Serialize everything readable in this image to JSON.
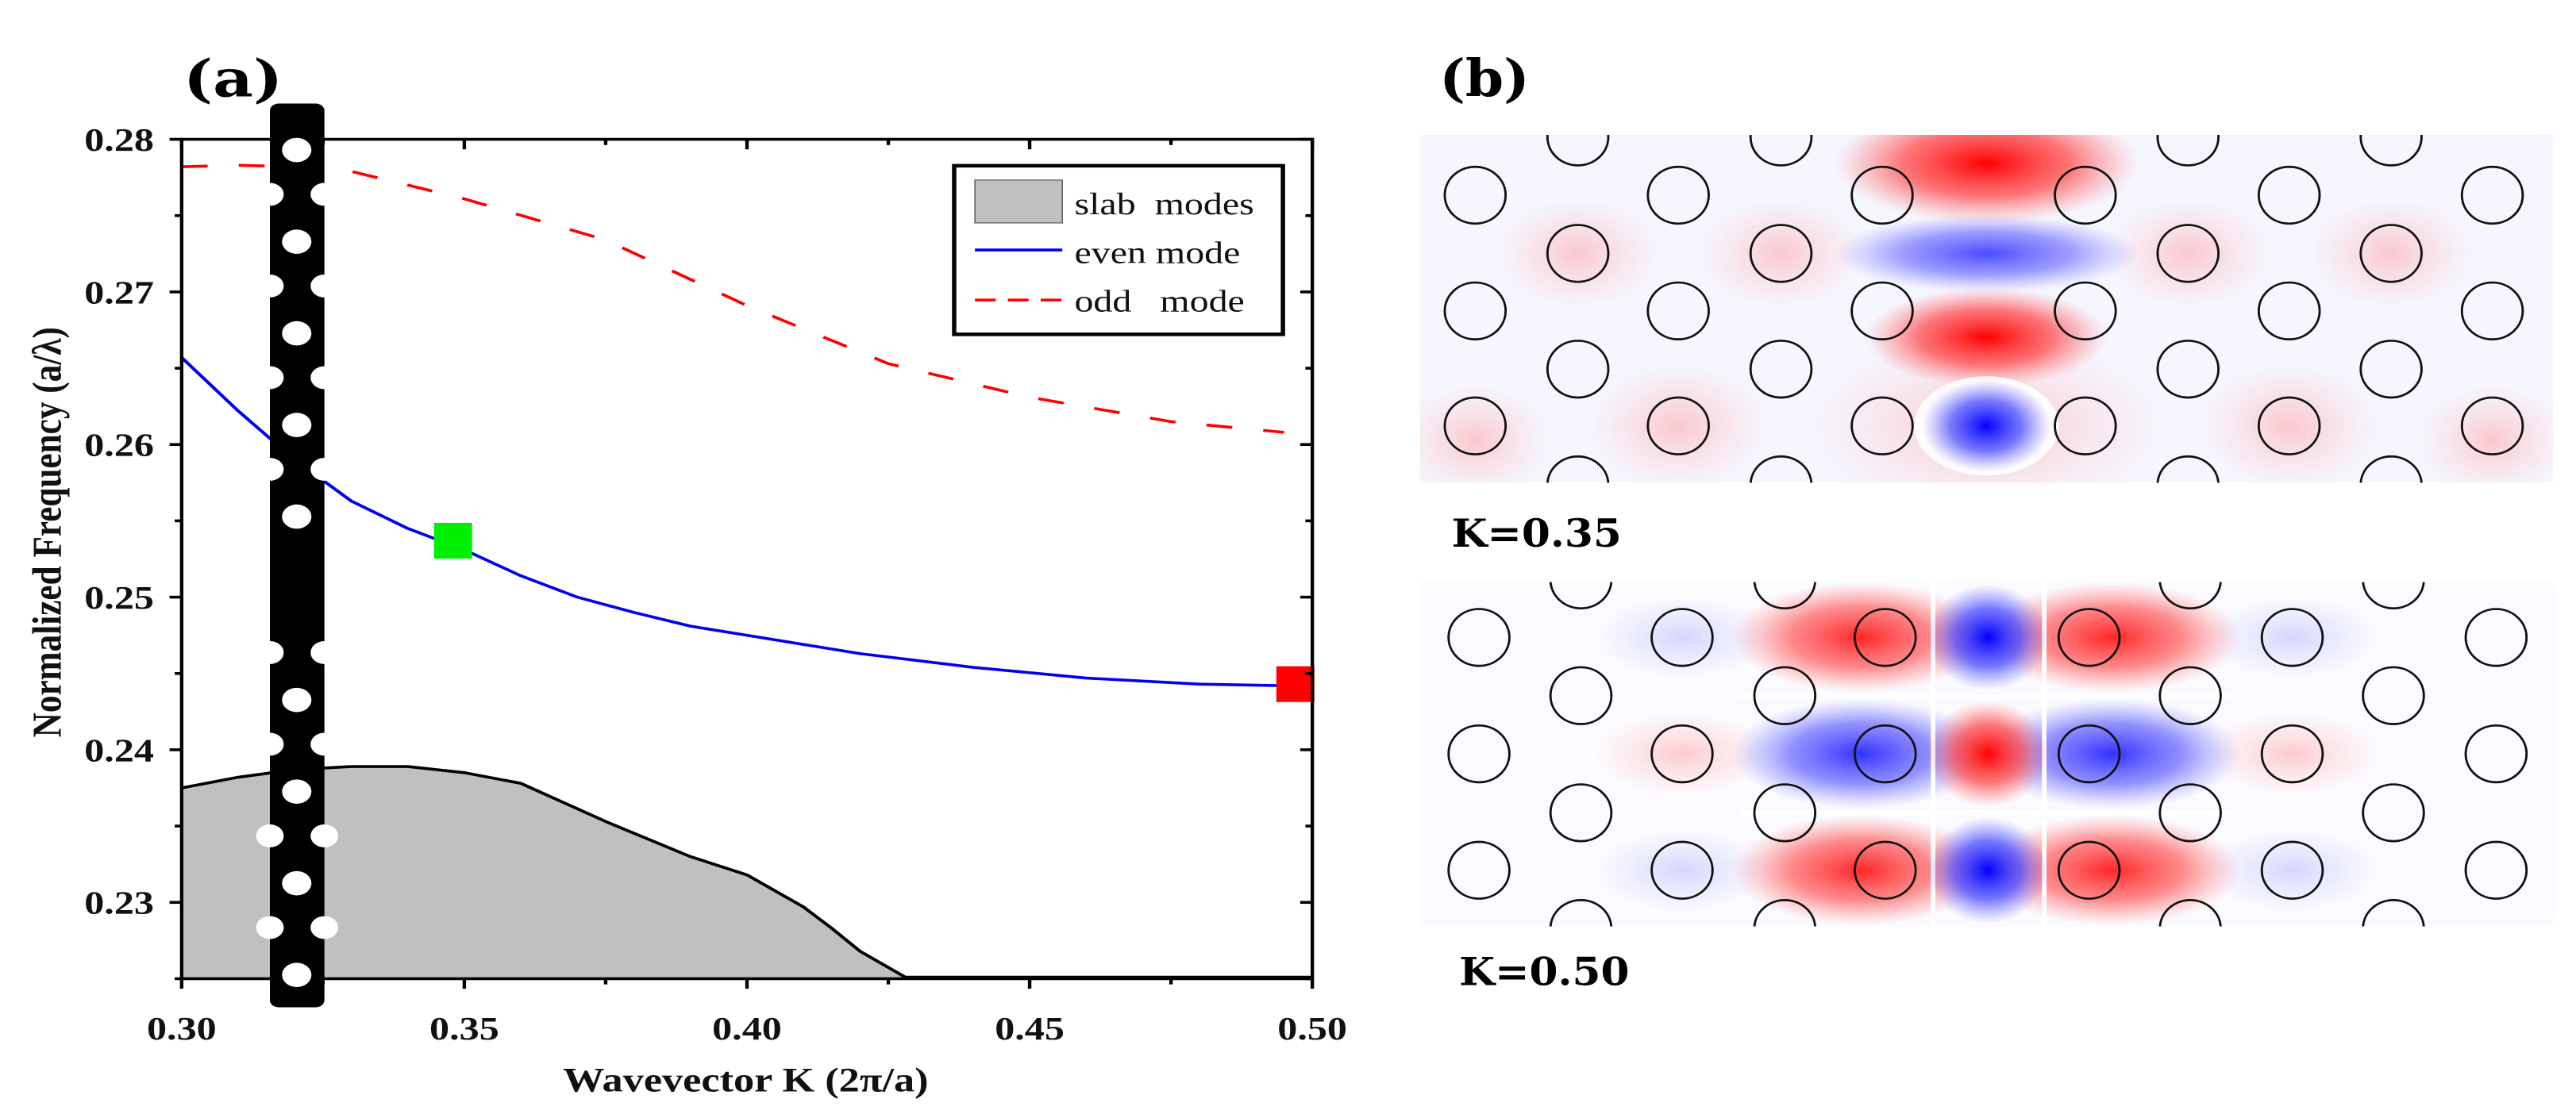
{
  "chart_data": {
    "type": "line",
    "panel_label": "(a)",
    "xlabel": "Wavevector K (2π/a)",
    "ylabel": "Normalized Frequency (a/λ)",
    "xlim": [
      0.3,
      0.5
    ],
    "ylim": [
      0.225,
      0.28
    ],
    "xticks": [
      "0.30",
      "0.35",
      "0.40",
      "0.45",
      "0.50"
    ],
    "yticks": [
      "0.23",
      "0.24",
      "0.25",
      "0.26",
      "0.27",
      "0.28"
    ],
    "grid": false,
    "legend_position": "top-right",
    "series": [
      {
        "name": "slab  modes",
        "style": "filled-area",
        "color": "#c0c0c0",
        "x": [
          0.3,
          0.31,
          0.32,
          0.33,
          0.34,
          0.35,
          0.36,
          0.375,
          0.39,
          0.4,
          0.41,
          0.415,
          0.42,
          0.428,
          0.5
        ],
        "y": [
          0.2375,
          0.2382,
          0.2387,
          0.2389,
          0.2389,
          0.2385,
          0.2378,
          0.2353,
          0.233,
          0.2318,
          0.2297,
          0.2283,
          0.2268,
          0.2251,
          0.2251
        ]
      },
      {
        "name": "even mode",
        "style": "solid",
        "color": "#0000ee",
        "x": [
          0.3,
          0.31,
          0.32,
          0.33,
          0.34,
          0.35,
          0.36,
          0.37,
          0.38,
          0.39,
          0.4,
          0.42,
          0.44,
          0.46,
          0.48,
          0.495
        ],
        "y": [
          0.2657,
          0.2622,
          0.259,
          0.2563,
          0.2545,
          0.2531,
          0.2514,
          0.25,
          0.249,
          0.2481,
          0.2475,
          0.2463,
          0.2454,
          0.2447,
          0.2443,
          0.2442
        ]
      },
      {
        "name": "odd   mode",
        "style": "dashed",
        "color": "#ff0000",
        "x": [
          0.3,
          0.31,
          0.32,
          0.33,
          0.35,
          0.375,
          0.4,
          0.425,
          0.45,
          0.475,
          0.495
        ],
        "y": [
          0.2782,
          0.2783,
          0.2782,
          0.2779,
          0.2761,
          0.2734,
          0.2691,
          0.2653,
          0.2631,
          0.2615,
          0.2608
        ]
      }
    ],
    "markers": [
      {
        "name": "K=0.35 point",
        "x": 0.348,
        "y": 0.2537,
        "color": "#00ee00"
      },
      {
        "name": "K=0.50 point",
        "x": 0.497,
        "y": 0.2443,
        "color": "#ff0000"
      }
    ]
  },
  "panel_b": {
    "label": "(b)",
    "maps": [
      {
        "caption": "K=0.35"
      },
      {
        "caption": "K=0.50"
      }
    ],
    "colors": {
      "positive": "#ff0000",
      "negative": "#0000ff"
    }
  }
}
